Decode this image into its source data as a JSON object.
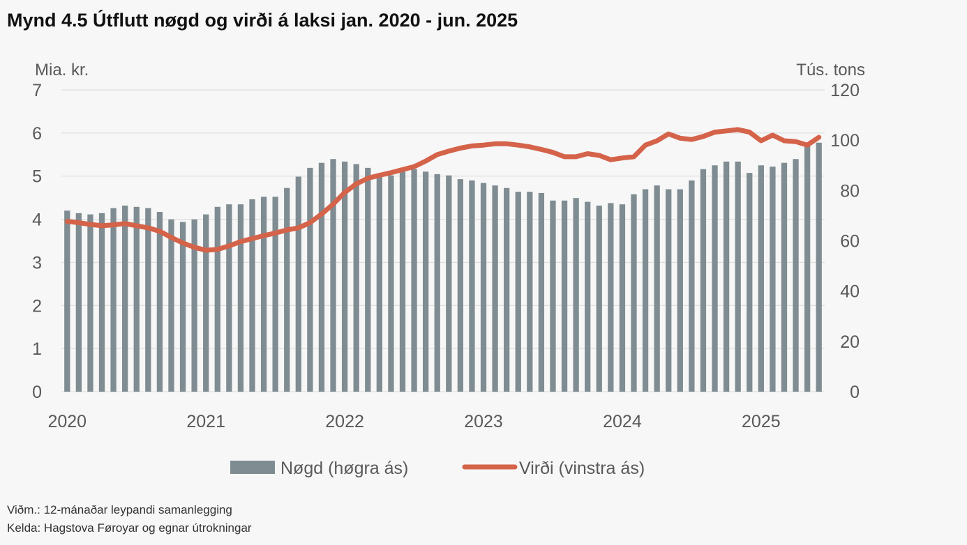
{
  "title": "Mynd 4.5 Útflutt nøgd og virði á laksi jan. 2020 - jun. 2025",
  "colors": {
    "bar": "#7f8c92",
    "line": "#d4634a",
    "grid": "#d9d9d9",
    "text": "#595959"
  },
  "chart_data": {
    "type": "bar+line",
    "title": "Mynd 4.5 Útflutt nøgd og virði á laksi jan. 2020 - jun. 2025",
    "x_tick_labels": [
      "2020",
      "2021",
      "2022",
      "2023",
      "2024",
      "2025"
    ],
    "y_left": {
      "label": "Mia. kr.",
      "min": 0,
      "max": 7,
      "ticks": [
        "0",
        "1",
        "2",
        "3",
        "4",
        "5",
        "6",
        "7"
      ]
    },
    "y_right": {
      "label": "Tús. tons",
      "min": 0,
      "max": 120,
      "ticks": [
        "0",
        "20",
        "40",
        "60",
        "80",
        "100",
        "120"
      ]
    },
    "legend": {
      "position": "bottom",
      "bar_label": "Nøgd (høgra ás)",
      "line_label": "Virði (vinstra ás)"
    },
    "series": [
      {
        "name": "Nøgd (høgra ás)",
        "type": "bar",
        "axis": "right",
        "values": [
          72,
          71,
          70.5,
          71,
          73,
          74,
          73.5,
          73,
          71.5,
          68.5,
          67.5,
          68.5,
          70.5,
          73.5,
          74.5,
          74.5,
          76.5,
          77.5,
          77.5,
          81,
          85.5,
          89,
          91,
          92.5,
          91.5,
          90.5,
          89,
          86.5,
          86,
          88.5,
          88.5,
          87.5,
          86.5,
          86,
          84.5,
          84,
          83,
          82,
          81,
          79.5,
          79.5,
          79,
          76,
          76,
          77,
          75.5,
          74,
          75,
          74.5,
          78.5,
          80.5,
          82,
          80.5,
          80.5,
          84,
          88.5,
          90,
          91.5,
          91.5,
          87,
          90,
          89.5,
          91,
          92.5,
          98,
          99
        ]
      },
      {
        "name": "Virði (vinstra ás)",
        "type": "line",
        "axis": "left",
        "values": [
          3.95,
          3.92,
          3.88,
          3.85,
          3.87,
          3.9,
          3.85,
          3.8,
          3.72,
          3.58,
          3.45,
          3.35,
          3.28,
          3.3,
          3.38,
          3.48,
          3.55,
          3.62,
          3.68,
          3.75,
          3.8,
          3.92,
          4.12,
          4.35,
          4.62,
          4.82,
          4.95,
          5.02,
          5.08,
          5.15,
          5.22,
          5.35,
          5.5,
          5.58,
          5.65,
          5.7,
          5.72,
          5.75,
          5.75,
          5.72,
          5.68,
          5.62,
          5.55,
          5.45,
          5.45,
          5.52,
          5.48,
          5.38,
          5.42,
          5.45,
          5.72,
          5.82,
          5.98,
          5.88,
          5.85,
          5.92,
          6.02,
          6.05,
          6.08,
          6.02,
          5.82,
          5.95,
          5.82,
          5.8,
          5.72,
          5.9
        ]
      }
    ]
  },
  "notes": {
    "line1": "Viðm.: 12-mánaðar leypandi samanlegging",
    "line2": "Kelda: Hagstova Føroyar og egnar útrokningar"
  }
}
